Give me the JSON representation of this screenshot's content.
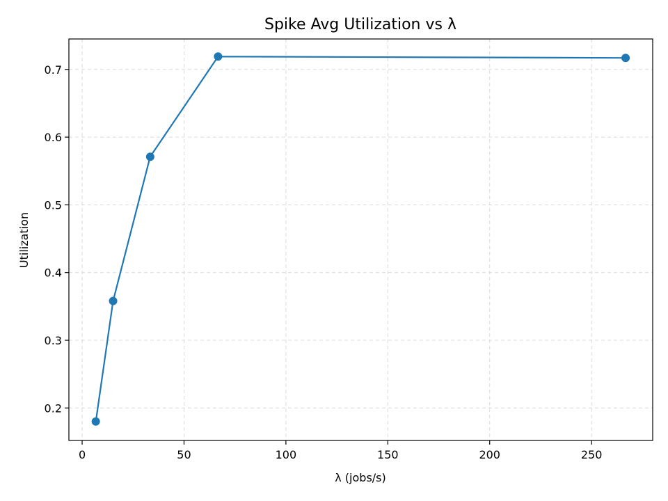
{
  "chart_data": {
    "type": "line",
    "title": "Spike Avg Utilization vs λ",
    "xlabel": "λ (jobs/s)",
    "ylabel": "Utilization",
    "xlim": [
      -6.5,
      280
    ],
    "ylim": [
      0.152,
      0.745
    ],
    "xticks": [
      0,
      50,
      100,
      150,
      200,
      250
    ],
    "yticks": [
      0.2,
      0.3,
      0.4,
      0.5,
      0.6,
      0.7
    ],
    "grid": true,
    "series": [
      {
        "color": "#1f77b4",
        "marker": "circle",
        "points": [
          {
            "x": 6.7,
            "y": 0.18
          },
          {
            "x": 15.2,
            "y": 0.358
          },
          {
            "x": 33.4,
            "y": 0.571
          },
          {
            "x": 66.7,
            "y": 0.719
          },
          {
            "x": 266.7,
            "y": 0.717
          }
        ]
      }
    ]
  }
}
